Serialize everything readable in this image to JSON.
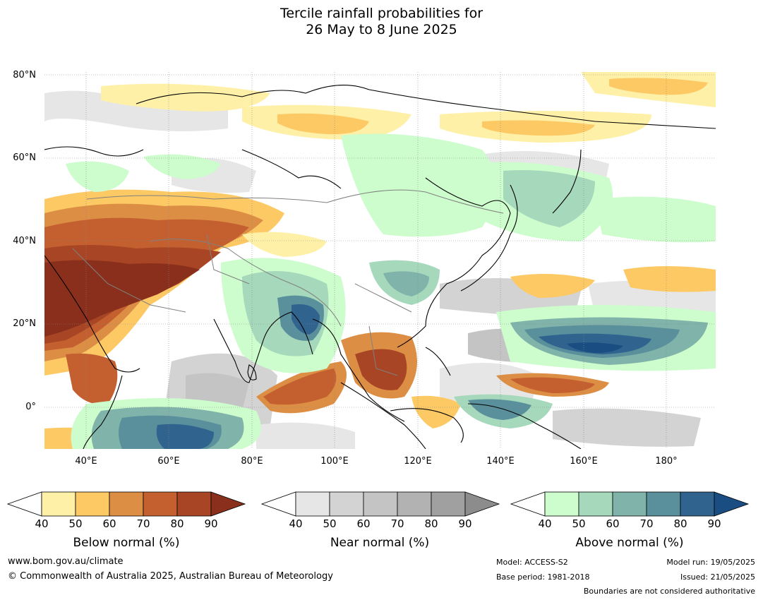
{
  "title": {
    "line1": "Tercile rainfall probabilities for",
    "line2": "26 May to 8 June 2025"
  },
  "axes": {
    "lat_labels": [
      "80°N",
      "60°N",
      "40°N",
      "20°N",
      "0°"
    ],
    "lon_labels": [
      "40°E",
      "60°E",
      "80°E",
      "100°E",
      "120°E",
      "140°E",
      "160°E",
      "180°"
    ],
    "lon_range": [
      30,
      192
    ],
    "lat_range": [
      -10,
      81
    ]
  },
  "colors": {
    "below": [
      "#fff0a8",
      "#fdc965",
      "#dd8e45",
      "#c4602f",
      "#a74524",
      "#8b2f1d"
    ],
    "near": [
      "#e6e6e6",
      "#d3d3d3",
      "#c4c4c4",
      "#b2b2b2",
      "#a0a0a0",
      "#8c8c8c"
    ],
    "above": [
      "#cdfccd",
      "#a6d8bb",
      "#80b3aa",
      "#5a8f9c",
      "#31638f",
      "#1a4e83"
    ],
    "coastline": "#000000",
    "border": "#808080",
    "grid": "#888888"
  },
  "colorbars": [
    {
      "title": "Below normal (%)",
      "ticks": [
        "40",
        "50",
        "60",
        "70",
        "80",
        "90"
      ],
      "palette": "below"
    },
    {
      "title": "Near normal (%)",
      "ticks": [
        "40",
        "50",
        "60",
        "70",
        "80",
        "90"
      ],
      "palette": "near"
    },
    {
      "title": "Above normal (%)",
      "ticks": [
        "40",
        "50",
        "60",
        "70",
        "80",
        "90"
      ],
      "palette": "above"
    }
  ],
  "footer": {
    "website": "www.bom.gov.au/climate",
    "copyright": "© Commonwealth of Australia 2025, Australian Bureau of Meteorology",
    "model": "Model: ACCESS-S2",
    "base_period": "Base period: 1981-2018",
    "model_run": "Model run: 19/05/2025",
    "issued": "Issued: 21/05/2025",
    "disclaimer": "Boundaries are not considered authoritative"
  }
}
